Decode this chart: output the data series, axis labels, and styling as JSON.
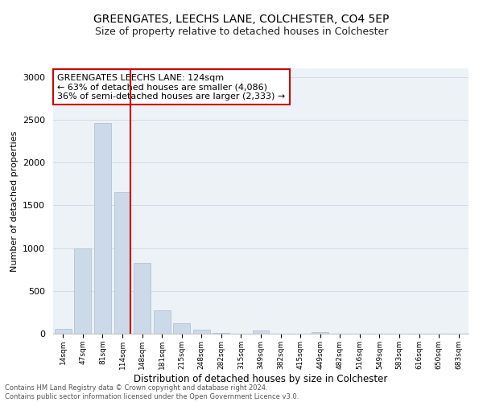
{
  "title": "GREENGATES, LEECHS LANE, COLCHESTER, CO4 5EP",
  "subtitle": "Size of property relative to detached houses in Colchester",
  "xlabel": "Distribution of detached houses by size in Colchester",
  "ylabel": "Number of detached properties",
  "bar_labels": [
    "14sqm",
    "47sqm",
    "81sqm",
    "114sqm",
    "148sqm",
    "181sqm",
    "215sqm",
    "248sqm",
    "282sqm",
    "315sqm",
    "349sqm",
    "382sqm",
    "415sqm",
    "449sqm",
    "482sqm",
    "516sqm",
    "549sqm",
    "583sqm",
    "616sqm",
    "650sqm",
    "683sqm"
  ],
  "bar_values": [
    55,
    1000,
    2460,
    1650,
    830,
    270,
    120,
    50,
    5,
    0,
    35,
    0,
    0,
    15,
    0,
    0,
    0,
    0,
    0,
    0,
    0
  ],
  "bar_color": "#ccd9e8",
  "bar_edge_color": "#aabcce",
  "highlight_bar_index": 3,
  "highlight_color": "#cc0000",
  "annotation_title": "GREENGATES LEECHS LANE: 124sqm",
  "annotation_line1": "← 63% of detached houses are smaller (4,086)",
  "annotation_line2": "36% of semi-detached houses are larger (2,333) →",
  "annotation_box_facecolor": "#ffffff",
  "annotation_box_edgecolor": "#cc0000",
  "ylim": [
    0,
    3100
  ],
  "yticks": [
    0,
    500,
    1000,
    1500,
    2000,
    2500,
    3000
  ],
  "footer_line1": "Contains HM Land Registry data © Crown copyright and database right 2024.",
  "footer_line2": "Contains public sector information licensed under the Open Government Licence v3.0.",
  "grid_color": "#d0dce8",
  "plot_bg_color": "#edf2f7",
  "title_fontsize": 10,
  "subtitle_fontsize": 9,
  "ylabel_fontsize": 8,
  "xlabel_fontsize": 8.5,
  "ytick_fontsize": 8,
  "xtick_fontsize": 6.5,
  "annotation_fontsize": 8,
  "footer_fontsize": 6
}
